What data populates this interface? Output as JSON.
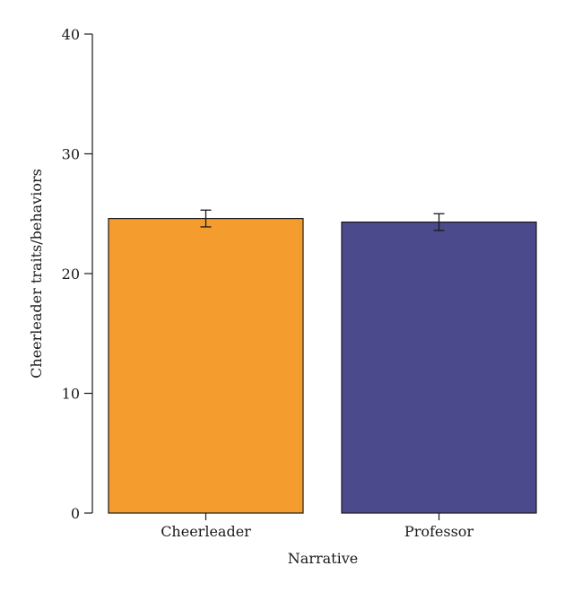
{
  "chart_data": {
    "type": "bar",
    "categories": [
      "Cheerleader",
      "Professor"
    ],
    "values": [
      24.6,
      24.3
    ],
    "error": [
      0.7,
      0.7
    ],
    "colors": [
      "#f49d2e",
      "#4b4a8c"
    ],
    "xlabel": "Narrative",
    "ylabel": "Cheerleader traits/behaviors",
    "ylim": [
      0,
      40
    ],
    "yticks": [
      0,
      10,
      20,
      30,
      40
    ],
    "grid": false,
    "legend": "none"
  }
}
